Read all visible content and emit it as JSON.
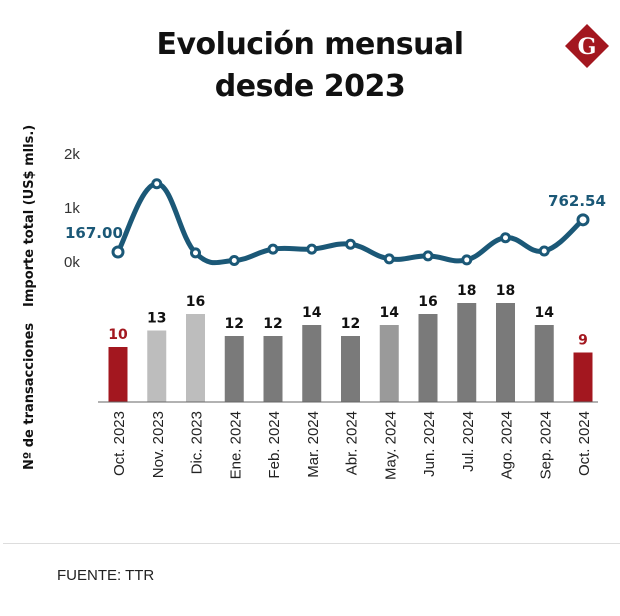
{
  "title_line1": "Evolución mensual",
  "title_line2": "desde 2023",
  "logo_letter": "G",
  "source": "FUENTE: TTR",
  "colors": {
    "line": "#1b5877",
    "highlight_bar": "#a3171f",
    "light_bar": "#bdbdbd",
    "mid_bar": "#9a9a9a",
    "dark_bar": "#7a7a7a",
    "logo": "#a3171f"
  },
  "chart_data": [
    {
      "type": "line",
      "ylabel": "Importe total (US$ mlls.)",
      "y_ticks": [
        "0k",
        "1k",
        "2k"
      ],
      "ylim": [
        0,
        2000
      ],
      "categories": [
        "Oct. 2023",
        "Nov. 2023",
        "Dic. 2023",
        "Ene. 2024",
        "Feb. 2024",
        "Mar. 2024",
        "Abr. 2024",
        "May. 2024",
        "Jun. 2024",
        "Jul. 2024",
        "Ago. 2024",
        "Sep. 2024",
        "Oct. 2024"
      ],
      "values": [
        167.0,
        1430,
        150,
        10,
        220,
        220,
        310,
        40,
        95,
        20,
        430,
        185,
        762.54
      ],
      "annotations": [
        {
          "index": 0,
          "text": "167.00"
        },
        {
          "index": 12,
          "text": "762.54"
        }
      ],
      "grid": false
    },
    {
      "type": "bar",
      "ylabel": "Nº de transacciones",
      "categories": [
        "Oct. 2023",
        "Nov. 2023",
        "Dic. 2023",
        "Ene. 2024",
        "Feb. 2024",
        "Mar. 2024",
        "Abr. 2024",
        "May. 2024",
        "Jun. 2024",
        "Jul. 2024",
        "Ago. 2024",
        "Sep. 2024",
        "Oct. 2024"
      ],
      "values": [
        10,
        13,
        16,
        12,
        12,
        14,
        12,
        14,
        16,
        18,
        18,
        14,
        9
      ],
      "bar_styles": [
        "highlight",
        "light",
        "light",
        "dark",
        "dark",
        "dark",
        "dark",
        "mid",
        "dark",
        "dark",
        "dark",
        "dark",
        "highlight"
      ],
      "ylim": [
        0,
        18
      ],
      "grid": false
    }
  ]
}
